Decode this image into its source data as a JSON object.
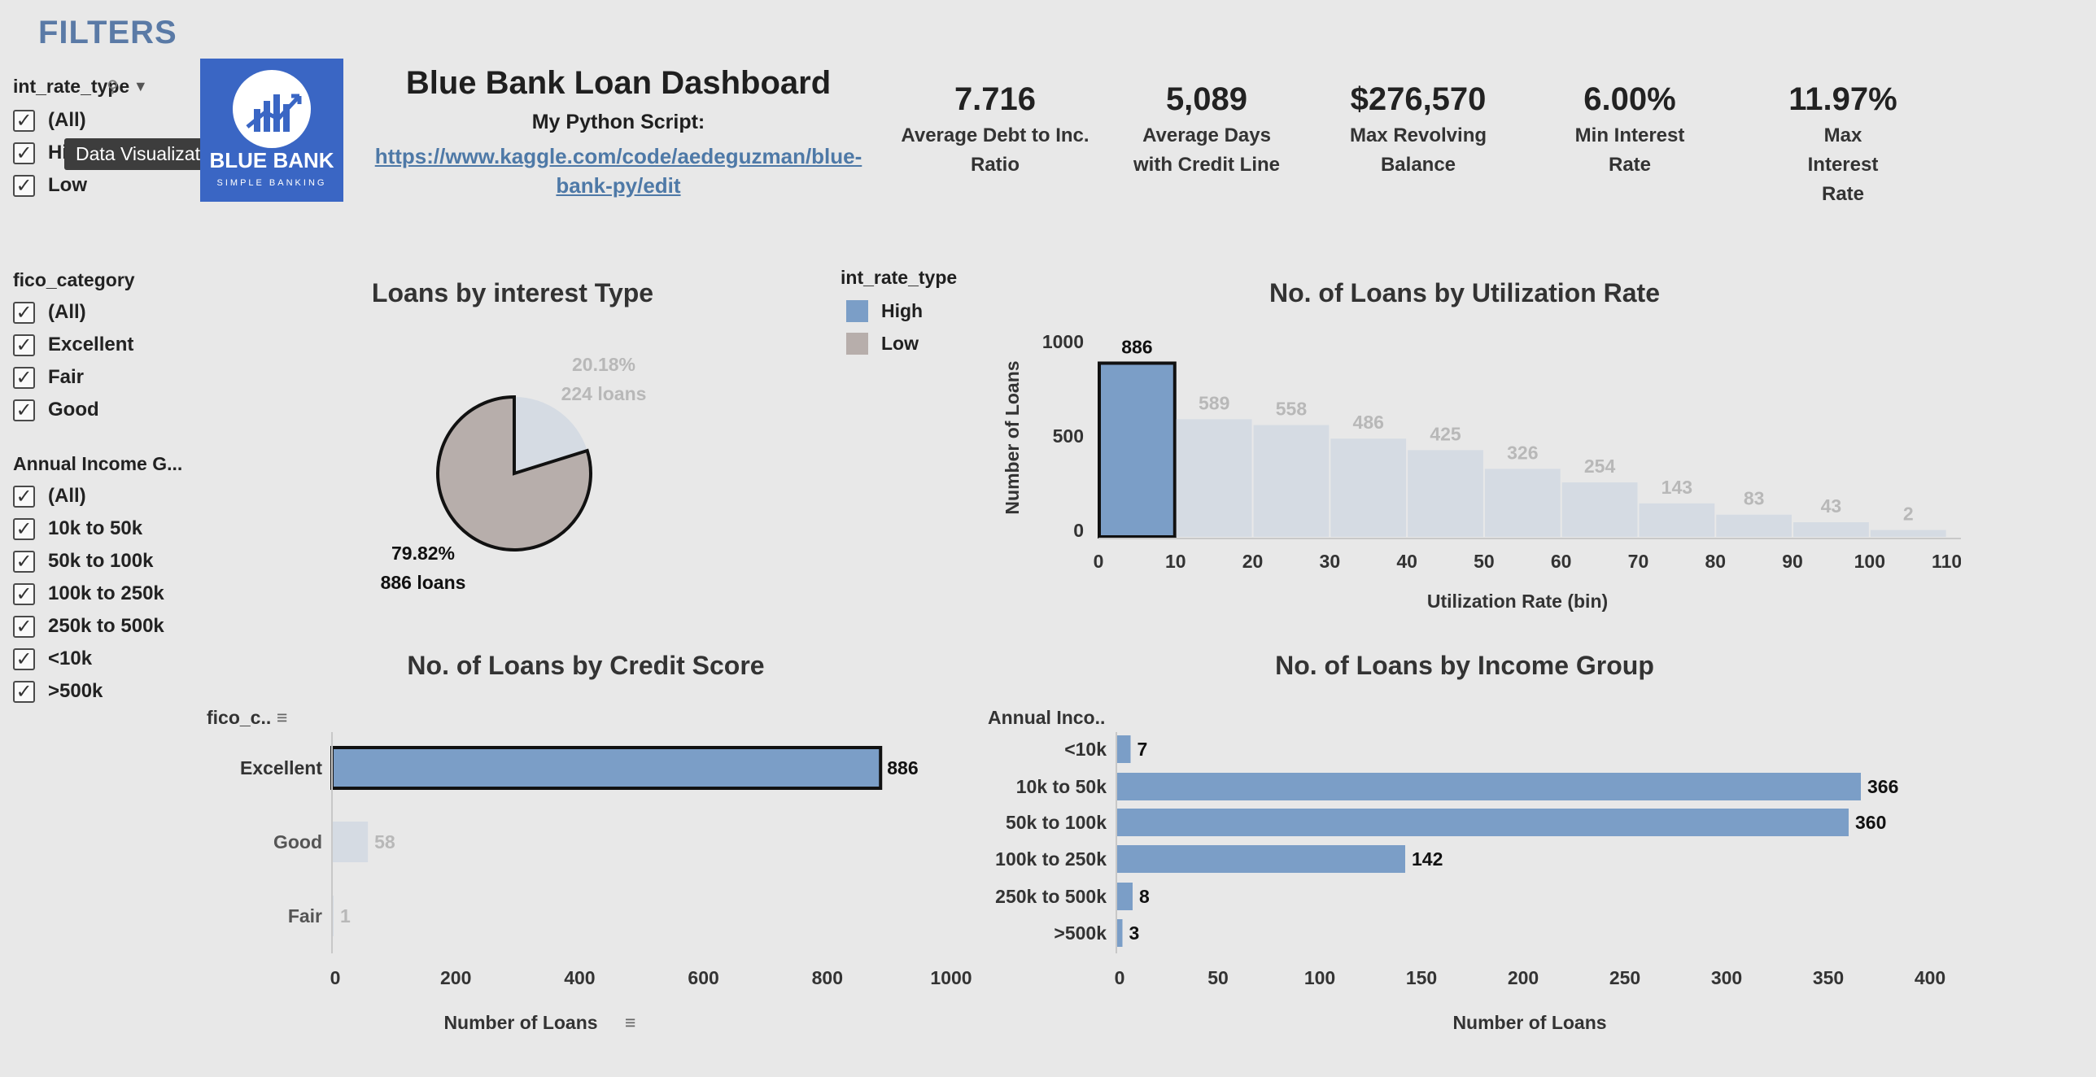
{
  "filters": {
    "title": "FILTERS",
    "groups": [
      {
        "title": "int_rate_type",
        "items": [
          "(All)",
          "High",
          "Low"
        ]
      },
      {
        "title": "fico_category",
        "items": [
          "(All)",
          "Excellent",
          "Fair",
          "Good"
        ]
      },
      {
        "title": "Annual Income G...",
        "items": [
          "(All)",
          "10k to 50k",
          "50k to 100k",
          "100k to 250k",
          "250k to 500k",
          "<10k",
          ">500k"
        ]
      }
    ],
    "tooltip": "Data Visualization",
    "checkmark": "✓"
  },
  "logo": {
    "text": "BLUE BANK",
    "sub": "SIMPLE BANKING",
    "color": "#3a66c4"
  },
  "header": {
    "title": "Blue Bank Loan Dashboard",
    "script_label": "My Python Script:",
    "script_url": "https://www.kaggle.com/code/aedeguzman/blue-bank-py/edit"
  },
  "kpis": [
    {
      "value": "7.716",
      "label": "Average Debt to Inc. Ratio"
    },
    {
      "value": "5,089",
      "label": "Average Days with Credit Line"
    },
    {
      "value": "$276,570",
      "label": "Max Revolving Balance"
    },
    {
      "value": "6.00%",
      "label": "Min Interest Rate"
    },
    {
      "value": "11.97%",
      "label": "Max Interest Rate"
    }
  ],
  "legend": {
    "title": "int_rate_type",
    "items": [
      {
        "name": "High",
        "color": "#7b9ec7"
      },
      {
        "name": "Low",
        "color": "#b7aeab"
      }
    ]
  },
  "chart_data": [
    {
      "type": "pie",
      "title": "Loans by interest Type",
      "slices": [
        {
          "percent": "79.82%",
          "count_label": "886 loans",
          "value": 886,
          "color": "#b7aeab"
        },
        {
          "percent": "20.18%",
          "count_label": "224 loans",
          "value": 224,
          "color": "#d5dbe3"
        }
      ]
    },
    {
      "type": "bar",
      "title": "No. of Loans by Utilization Rate",
      "xlabel": "Utilization Rate (bin)",
      "ylabel": "Number of Loans",
      "bins": [
        0,
        10,
        20,
        30,
        40,
        50,
        60,
        70,
        80,
        90,
        100
      ],
      "values": [
        886,
        589,
        558,
        486,
        425,
        326,
        254,
        143,
        83,
        43,
        2
      ],
      "xticks": [
        0,
        10,
        20,
        30,
        40,
        50,
        60,
        70,
        80,
        90,
        100,
        110
      ],
      "yticks": [
        0,
        500,
        1000
      ],
      "ylim": [
        0,
        1000
      ]
    },
    {
      "type": "bar",
      "title": "No. of Loans by Credit Score",
      "orientation": "horizontal",
      "dimension_label": "fico_c..",
      "xlabel": "Number of Loans",
      "categories": [
        "Excellent",
        "Good",
        "Fair"
      ],
      "values": [
        886,
        58,
        1
      ],
      "xticks": [
        0,
        200,
        400,
        600,
        800,
        1000
      ],
      "xlim": [
        0,
        1000
      ]
    },
    {
      "type": "bar",
      "title": "No. of Loans by Income Group",
      "orientation": "horizontal",
      "dimension_label": "Annual Inco..",
      "xlabel": "Number of Loans",
      "categories": [
        "<10k",
        "10k to 50k",
        "50k to 100k",
        "100k to 250k",
        "250k to 500k",
        ">500k"
      ],
      "values": [
        7,
        366,
        360,
        142,
        8,
        3
      ],
      "xticks": [
        0,
        50,
        100,
        150,
        200,
        250,
        300,
        350,
        400
      ],
      "xlim": [
        0,
        400
      ]
    }
  ],
  "colors": {
    "highlight": "#7b9ec7",
    "muted": "#d5dbe3",
    "muted_text": "#b8b8b8",
    "axis": "#c8c8c8"
  }
}
